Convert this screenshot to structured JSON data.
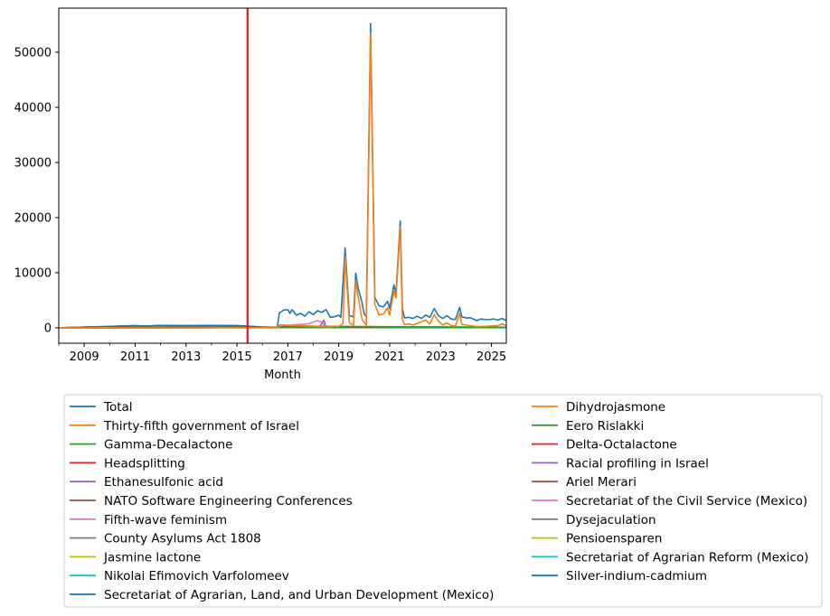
{
  "chart_data": {
    "type": "line",
    "xlabel": "Month",
    "ylabel": "",
    "title": "",
    "x_range": [
      "2008-01",
      "2025-08"
    ],
    "ylim": [
      -2800,
      58000
    ],
    "y_ticks": [
      0,
      10000,
      20000,
      30000,
      40000,
      50000
    ],
    "y_tick_labels": [
      "0",
      "10000",
      "20000",
      "30000",
      "40000",
      "50000"
    ],
    "x_tick_labels": [
      "2009",
      "2011",
      "2013",
      "2015",
      "2017",
      "2019",
      "2021",
      "2023",
      "2025"
    ],
    "x_tick_dates": [
      "2009-01",
      "2011-01",
      "2013-01",
      "2015-01",
      "2017-01",
      "2019-01",
      "2021-01",
      "2023-01",
      "2025-01"
    ],
    "vertical_line": {
      "x": "2015-06",
      "color": "#e41a1c"
    },
    "grid": false,
    "legend_position": "below",
    "series": [
      {
        "name": "Total",
        "color": "#1f77b4",
        "points": [
          [
            "2008-01",
            0
          ],
          [
            "2009-01",
            120
          ],
          [
            "2010-01",
            250
          ],
          [
            "2011-01",
            380
          ],
          [
            "2011-06",
            300
          ],
          [
            "2012-01",
            420
          ],
          [
            "2013-01",
            380
          ],
          [
            "2014-01",
            420
          ],
          [
            "2015-01",
            380
          ],
          [
            "2015-06",
            300
          ],
          [
            "2016-01",
            100
          ],
          [
            "2016-08",
            80
          ],
          [
            "2016-09",
            2700
          ],
          [
            "2016-11",
            3200
          ],
          [
            "2017-01",
            3300
          ],
          [
            "2017-02",
            2600
          ],
          [
            "2017-03",
            3300
          ],
          [
            "2017-05",
            2300
          ],
          [
            "2017-07",
            2600
          ],
          [
            "2017-09",
            2100
          ],
          [
            "2017-11",
            2900
          ],
          [
            "2018-01",
            2400
          ],
          [
            "2018-03",
            3100
          ],
          [
            "2018-05",
            2800
          ],
          [
            "2018-07",
            3300
          ],
          [
            "2018-09",
            1900
          ],
          [
            "2018-11",
            2000
          ],
          [
            "2019-01",
            2300
          ],
          [
            "2019-02",
            1900
          ],
          [
            "2019-04",
            14500
          ],
          [
            "2019-06",
            2200
          ],
          [
            "2019-08",
            2000
          ],
          [
            "2019-09",
            9900
          ],
          [
            "2019-10",
            7500
          ],
          [
            "2019-12",
            4500
          ],
          [
            "2020-01",
            2500
          ],
          [
            "2020-02",
            2000
          ],
          [
            "2020-04",
            55200
          ],
          [
            "2020-06",
            5500
          ],
          [
            "2020-08",
            4000
          ],
          [
            "2020-10",
            3800
          ],
          [
            "2020-12",
            4800
          ],
          [
            "2021-01",
            3500
          ],
          [
            "2021-03",
            7800
          ],
          [
            "2021-04",
            6200
          ],
          [
            "2021-06",
            19400
          ],
          [
            "2021-07",
            3500
          ],
          [
            "2021-08",
            1800
          ],
          [
            "2021-10",
            1900
          ],
          [
            "2021-12",
            1700
          ],
          [
            "2022-02",
            2100
          ],
          [
            "2022-04",
            1700
          ],
          [
            "2022-06",
            2300
          ],
          [
            "2022-08",
            1900
          ],
          [
            "2022-10",
            3500
          ],
          [
            "2022-12",
            2200
          ],
          [
            "2023-02",
            1700
          ],
          [
            "2023-04",
            2200
          ],
          [
            "2023-06",
            1600
          ],
          [
            "2023-08",
            1500
          ],
          [
            "2023-10",
            3700
          ],
          [
            "2023-11",
            2000
          ],
          [
            "2024-01",
            1800
          ],
          [
            "2024-03",
            1800
          ],
          [
            "2024-05",
            1500
          ],
          [
            "2024-06",
            1300
          ],
          [
            "2024-08",
            1600
          ],
          [
            "2024-10",
            1500
          ],
          [
            "2024-12",
            1500
          ],
          [
            "2025-02",
            1600
          ],
          [
            "2025-04",
            1400
          ],
          [
            "2025-06",
            1700
          ],
          [
            "2025-08",
            1300
          ]
        ]
      },
      {
        "name": "Thirty-fifth government of Israel",
        "color": "#ff7f0e",
        "points": [
          [
            "2008-01",
            0
          ],
          [
            "2016-08",
            0
          ],
          [
            "2016-09",
            500
          ],
          [
            "2017-06",
            400
          ],
          [
            "2018-06",
            200
          ],
          [
            "2019-01",
            250
          ],
          [
            "2019-03",
            800
          ],
          [
            "2019-04",
            12800
          ],
          [
            "2019-06",
            900
          ],
          [
            "2019-08",
            500
          ],
          [
            "2019-09",
            8600
          ],
          [
            "2019-10",
            6000
          ],
          [
            "2019-12",
            1500
          ],
          [
            "2020-02",
            500
          ],
          [
            "2020-04",
            53400
          ],
          [
            "2020-06",
            4200
          ],
          [
            "2020-08",
            2300
          ],
          [
            "2020-10",
            2500
          ],
          [
            "2020-12",
            3600
          ],
          [
            "2021-01",
            2300
          ],
          [
            "2021-03",
            6600
          ],
          [
            "2021-04",
            5400
          ],
          [
            "2021-06",
            18300
          ],
          [
            "2021-07",
            1500
          ],
          [
            "2021-08",
            600
          ],
          [
            "2021-10",
            700
          ],
          [
            "2021-12",
            500
          ],
          [
            "2022-02",
            800
          ],
          [
            "2022-06",
            1400
          ],
          [
            "2022-08",
            700
          ],
          [
            "2022-10",
            2400
          ],
          [
            "2022-12",
            1200
          ],
          [
            "2023-02",
            500
          ],
          [
            "2023-04",
            900
          ],
          [
            "2023-06",
            400
          ],
          [
            "2023-08",
            300
          ],
          [
            "2023-10",
            2600
          ],
          [
            "2023-11",
            600
          ],
          [
            "2024-01",
            500
          ],
          [
            "2024-06",
            200
          ],
          [
            "2024-12",
            300
          ],
          [
            "2025-04",
            400
          ],
          [
            "2025-06",
            700
          ],
          [
            "2025-08",
            400
          ]
        ]
      },
      {
        "name": "Gamma-Decalactone",
        "color": "#2ca02c",
        "points": [
          [
            "2008-01",
            0
          ],
          [
            "2016-08",
            60
          ],
          [
            "2019-01",
            120
          ],
          [
            "2020-04",
            200
          ],
          [
            "2021-01",
            120
          ],
          [
            "2025-08",
            80
          ]
        ]
      },
      {
        "name": "Headsplitting",
        "color": "#d62728",
        "points": [
          [
            "2008-01",
            0
          ],
          [
            "2009-01",
            120
          ],
          [
            "2010-01",
            250
          ],
          [
            "2011-01",
            380
          ],
          [
            "2011-06",
            300
          ],
          [
            "2012-01",
            420
          ],
          [
            "2013-01",
            380
          ],
          [
            "2014-01",
            420
          ],
          [
            "2015-01",
            380
          ],
          [
            "2015-06",
            300
          ],
          [
            "2016-01",
            60
          ],
          [
            "2025-08",
            30
          ]
        ]
      },
      {
        "name": "Ethanesulfonic acid",
        "color": "#9467bd",
        "points": [
          [
            "2008-01",
            0
          ],
          [
            "2016-08",
            40
          ],
          [
            "2018-04",
            200
          ],
          [
            "2018-06",
            1400
          ],
          [
            "2018-07",
            60
          ],
          [
            "2025-08",
            40
          ]
        ]
      },
      {
        "name": "NATO Software Engineering Conferences",
        "color": "#8c564b",
        "points": [
          [
            "2008-01",
            0
          ],
          [
            "2009-01",
            120
          ],
          [
            "2010-01",
            200
          ],
          [
            "2011-01",
            300
          ],
          [
            "2012-01",
            350
          ],
          [
            "2013-01",
            300
          ],
          [
            "2014-01",
            350
          ],
          [
            "2015-06",
            250
          ],
          [
            "2016-08",
            80
          ],
          [
            "2017-01",
            300
          ],
          [
            "2025-08",
            60
          ]
        ]
      },
      {
        "name": "Fifth-wave feminism",
        "color": "#e377c2",
        "points": [
          [
            "2008-01",
            0
          ],
          [
            "2016-08",
            60
          ],
          [
            "2017-01",
            400
          ],
          [
            "2017-06",
            600
          ],
          [
            "2017-10",
            700
          ],
          [
            "2018-01",
            1000
          ],
          [
            "2018-03",
            1300
          ],
          [
            "2018-05",
            1000
          ],
          [
            "2018-07",
            200
          ],
          [
            "2019-01",
            150
          ],
          [
            "2025-08",
            100
          ]
        ]
      },
      {
        "name": "County Asylums Act 1808",
        "color": "#7f7f7f",
        "points": [
          [
            "2008-01",
            0
          ],
          [
            "2016-08",
            40
          ],
          [
            "2020-04",
            100
          ],
          [
            "2025-08",
            60
          ]
        ]
      },
      {
        "name": "Jasmine lactone",
        "color": "#bcbd22",
        "points": [
          [
            "2008-01",
            0
          ],
          [
            "2016-08",
            60
          ],
          [
            "2020-04",
            150
          ],
          [
            "2025-08",
            80
          ]
        ]
      },
      {
        "name": "Nikolai Efimovich Varfolomeev",
        "color": "#17becf",
        "points": [
          [
            "2008-01",
            0
          ],
          [
            "2016-08",
            50
          ],
          [
            "2025-08",
            40
          ]
        ]
      },
      {
        "name": "Secretariat of Agrarian, Land, and Urban Development (Mexico)",
        "color": "#1f77b4",
        "points": [
          [
            "2008-01",
            0
          ],
          [
            "2016-08",
            80
          ],
          [
            "2020-04",
            150
          ],
          [
            "2025-08",
            100
          ]
        ]
      },
      {
        "name": "Dihydrojasmone",
        "color": "#ff7f0e",
        "points": [
          [
            "2008-01",
            0
          ],
          [
            "2016-08",
            60
          ],
          [
            "2020-04",
            200
          ],
          [
            "2025-08",
            100
          ]
        ]
      },
      {
        "name": "Eero Rislakki",
        "color": "#2ca02c",
        "points": [
          [
            "2008-01",
            0
          ],
          [
            "2016-08",
            40
          ],
          [
            "2025-08",
            30
          ]
        ]
      },
      {
        "name": "Delta-Octalactone",
        "color": "#d62728",
        "points": [
          [
            "2008-01",
            0
          ],
          [
            "2016-08",
            50
          ],
          [
            "2025-08",
            40
          ]
        ]
      },
      {
        "name": "Racial profiling in Israel",
        "color": "#9467bd",
        "points": [
          [
            "2008-01",
            0
          ],
          [
            "2016-08",
            50
          ],
          [
            "2025-08",
            40
          ]
        ]
      },
      {
        "name": "Ariel Merari",
        "color": "#8c564b",
        "points": [
          [
            "2008-01",
            0
          ],
          [
            "2016-08",
            40
          ],
          [
            "2025-08",
            30
          ]
        ]
      },
      {
        "name": "Secretariat of the Civil Service (Mexico)",
        "color": "#e377c2",
        "points": [
          [
            "2008-01",
            0
          ],
          [
            "2016-08",
            50
          ],
          [
            "2025-08",
            40
          ]
        ]
      },
      {
        "name": "Dysejaculation",
        "color": "#7f7f7f",
        "points": [
          [
            "2008-01",
            0
          ],
          [
            "2016-08",
            40
          ],
          [
            "2025-08",
            30
          ]
        ]
      },
      {
        "name": "Pensioensparen",
        "color": "#bcbd22",
        "points": [
          [
            "2008-01",
            0
          ],
          [
            "2016-08",
            50
          ],
          [
            "2025-08",
            40
          ]
        ]
      },
      {
        "name": "Secretariat of Agrarian Reform (Mexico)",
        "color": "#17becf",
        "points": [
          [
            "2008-01",
            0
          ],
          [
            "2016-08",
            40
          ],
          [
            "2025-08",
            30
          ]
        ]
      },
      {
        "name": "Silver-indium-cadmium",
        "color": "#1f77b4",
        "points": [
          [
            "2008-01",
            0
          ],
          [
            "2016-08",
            40
          ],
          [
            "2025-08",
            30
          ]
        ]
      }
    ]
  }
}
